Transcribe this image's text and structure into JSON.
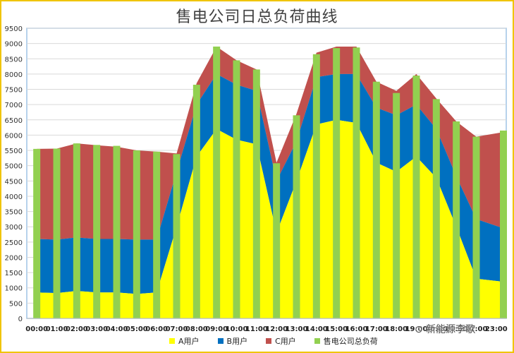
{
  "chart_data": {
    "type": "bar",
    "title": "售电公司日总负荷曲线",
    "categories": [
      "00:00",
      "01:00",
      "02:00",
      "03:00",
      "04:00",
      "05:00",
      "06:00",
      "07:00",
      "08:00",
      "09:00",
      "10:00",
      "11:00",
      "12:00",
      "13:00",
      "14:00",
      "15:00",
      "16:00",
      "17:00",
      "18:00",
      "19:00",
      "20:00",
      "21:00",
      "22:00",
      "23:00"
    ],
    "y_ticks": [
      0,
      500,
      1000,
      1500,
      2000,
      2500,
      3000,
      3500,
      4000,
      4500,
      5000,
      5500,
      6000,
      6500,
      7000,
      7500,
      8000,
      8500,
      9000,
      9500
    ],
    "ylim": [
      0,
      9500
    ],
    "grid": true,
    "legend_position": "bottom",
    "series": [
      {
        "name": "A用户",
        "type": "area",
        "color": "#ffff00",
        "values": [
          850,
          830,
          900,
          850,
          850,
          800,
          850,
          3000,
          5300,
          6200,
          5850,
          5700,
          2800,
          4500,
          6350,
          6500,
          6400,
          5100,
          4800,
          5300,
          4600,
          3000,
          1300,
          1200
        ]
      },
      {
        "name": "B用户",
        "type": "area",
        "color": "#0070c0",
        "values": [
          1750,
          1750,
          1750,
          1750,
          1750,
          1780,
          1730,
          1800,
          1700,
          1800,
          1800,
          1750,
          1700,
          1300,
          1550,
          1500,
          1600,
          1800,
          1850,
          1700,
          1600,
          1650,
          1950,
          1750
        ]
      },
      {
        "name": "C用户",
        "type": "area",
        "color": "#c0504d",
        "values": [
          2950,
          2980,
          3080,
          3070,
          3020,
          2920,
          2880,
          600,
          700,
          900,
          800,
          700,
          600,
          900,
          800,
          900,
          900,
          850,
          800,
          1000,
          1000,
          1800,
          2700,
          3150
        ]
      },
      {
        "name": "售电公司总负荷",
        "type": "bar",
        "color": "#92d050",
        "values": [
          5550,
          5560,
          5730,
          5680,
          5650,
          5500,
          5460,
          5380,
          7650,
          8900,
          8450,
          8150,
          5080,
          6650,
          8650,
          8850,
          8870,
          7750,
          7380,
          7950,
          7180,
          6450,
          5950,
          6150
        ]
      }
    ],
    "watermark": "新能源李歌"
  }
}
